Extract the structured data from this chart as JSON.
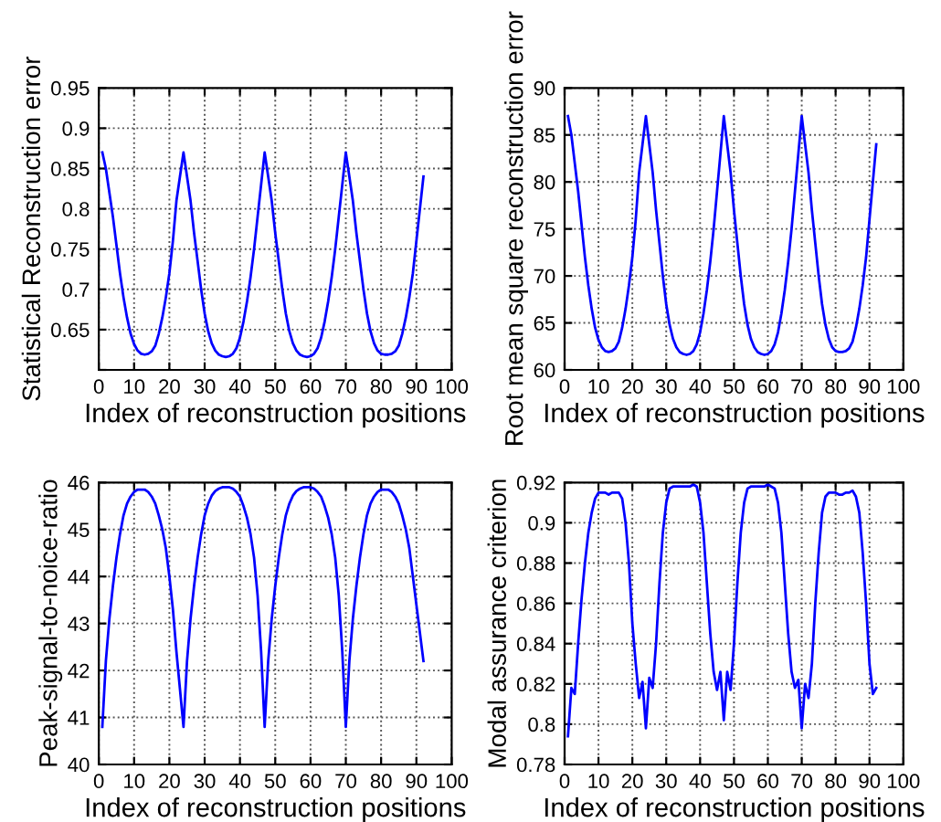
{
  "chart_data": [
    {
      "type": "line",
      "xlabel": "Index of reconstruction positions",
      "ylabel": "Statistical Reconstruction error",
      "xlim": [
        0,
        100
      ],
      "xticks": [
        0,
        10,
        20,
        30,
        40,
        50,
        60,
        70,
        80,
        90,
        100
      ],
      "ylim": [
        0.6,
        0.95
      ],
      "yticks": [
        {
          "value": 0.6,
          "label": null
        },
        0.65,
        0.7,
        0.75,
        0.8,
        0.85,
        0.9,
        0.95
      ],
      "grid": true,
      "line_style": "solid",
      "x": [
        1,
        2,
        3,
        4,
        5,
        6,
        7,
        8,
        9,
        10,
        11,
        12,
        13,
        14,
        15,
        16,
        17,
        18,
        19,
        20,
        21,
        22,
        23,
        24,
        25,
        26,
        27,
        28,
        29,
        30,
        31,
        32,
        33,
        34,
        35,
        36,
        37,
        38,
        39,
        40,
        41,
        42,
        43,
        44,
        45,
        46,
        47,
        48,
        49,
        50,
        51,
        52,
        53,
        54,
        55,
        56,
        57,
        58,
        59,
        60,
        61,
        62,
        63,
        64,
        65,
        66,
        67,
        68,
        69,
        70,
        71,
        72,
        73,
        74,
        75,
        76,
        77,
        78,
        79,
        80,
        81,
        82,
        83,
        84,
        85,
        86,
        87,
        88,
        89,
        90,
        91,
        92
      ],
      "series": [
        {
          "color": "#0000ff",
          "values": [
            0.87,
            0.85,
            0.82,
            0.79,
            0.755,
            0.72,
            0.69,
            0.665,
            0.645,
            0.632,
            0.624,
            0.62,
            0.619,
            0.62,
            0.623,
            0.63,
            0.645,
            0.665,
            0.69,
            0.72,
            0.76,
            0.81,
            0.84,
            0.87,
            0.84,
            0.81,
            0.77,
            0.735,
            0.7,
            0.67,
            0.648,
            0.633,
            0.624,
            0.619,
            0.617,
            0.616,
            0.617,
            0.62,
            0.627,
            0.64,
            0.66,
            0.685,
            0.715,
            0.75,
            0.79,
            0.83,
            0.87,
            0.84,
            0.81,
            0.77,
            0.735,
            0.7,
            0.67,
            0.648,
            0.633,
            0.624,
            0.619,
            0.617,
            0.616,
            0.617,
            0.62,
            0.627,
            0.64,
            0.66,
            0.685,
            0.715,
            0.75,
            0.79,
            0.83,
            0.87,
            0.84,
            0.81,
            0.77,
            0.735,
            0.7,
            0.67,
            0.648,
            0.633,
            0.624,
            0.62,
            0.619,
            0.619,
            0.62,
            0.623,
            0.63,
            0.645,
            0.665,
            0.69,
            0.72,
            0.76,
            0.8,
            0.84
          ]
        }
      ]
    },
    {
      "type": "line",
      "xlabel": "Index of reconstruction positions",
      "ylabel": "Root mean square reconstruction error",
      "xlim": [
        0,
        100
      ],
      "xticks": [
        0,
        10,
        20,
        30,
        40,
        50,
        60,
        70,
        80,
        90,
        100
      ],
      "ylim": [
        60,
        90
      ],
      "yticks": [
        60,
        65,
        70,
        75,
        80,
        85,
        90
      ],
      "grid": true,
      "line_style": "solid",
      "x": [
        1,
        2,
        3,
        4,
        5,
        6,
        7,
        8,
        9,
        10,
        11,
        12,
        13,
        14,
        15,
        16,
        17,
        18,
        19,
        20,
        21,
        22,
        23,
        24,
        25,
        26,
        27,
        28,
        29,
        30,
        31,
        32,
        33,
        34,
        35,
        36,
        37,
        38,
        39,
        40,
        41,
        42,
        43,
        44,
        45,
        46,
        47,
        48,
        49,
        50,
        51,
        52,
        53,
        54,
        55,
        56,
        57,
        58,
        59,
        60,
        61,
        62,
        63,
        64,
        65,
        66,
        67,
        68,
        69,
        70,
        71,
        72,
        73,
        74,
        75,
        76,
        77,
        78,
        79,
        80,
        81,
        82,
        83,
        84,
        85,
        86,
        87,
        88,
        89,
        90,
        91,
        92
      ],
      "series": [
        {
          "color": "#0000ff",
          "values": [
            87,
            85,
            82,
            79,
            75.5,
            72,
            69,
            66.5,
            64.5,
            63.2,
            62.4,
            62,
            61.9,
            62,
            62.3,
            63,
            64.5,
            66.5,
            69,
            72,
            76,
            81,
            84,
            87,
            84,
            81,
            77,
            73.5,
            70,
            67,
            64.8,
            63.3,
            62.4,
            61.9,
            61.7,
            61.6,
            61.7,
            62,
            62.7,
            64,
            66,
            68.5,
            71.5,
            75,
            79,
            83,
            87,
            84,
            81,
            77,
            73.5,
            70,
            67,
            64.8,
            63.3,
            62.4,
            61.9,
            61.7,
            61.6,
            61.7,
            62,
            62.7,
            64,
            66,
            68.5,
            71.5,
            75,
            79,
            83,
            87,
            84,
            81,
            77,
            73.5,
            70,
            67,
            64.8,
            63.3,
            62.4,
            62,
            61.9,
            61.9,
            62,
            62.3,
            63,
            64.5,
            66.5,
            69,
            72,
            76,
            80,
            84
          ]
        }
      ]
    },
    {
      "type": "line",
      "xlabel": "Index of reconstruction positions",
      "ylabel": "Peak-signal-to-noice-ratio",
      "xlim": [
        0,
        100
      ],
      "xticks": [
        0,
        10,
        20,
        30,
        40,
        50,
        60,
        70,
        80,
        90,
        100
      ],
      "ylim": [
        40,
        46
      ],
      "yticks": [
        40,
        41,
        42,
        43,
        44,
        45,
        46
      ],
      "grid": true,
      "line_style": "solid",
      "x": [
        1,
        2,
        3,
        4,
        5,
        6,
        7,
        8,
        9,
        10,
        11,
        12,
        13,
        14,
        15,
        16,
        17,
        18,
        19,
        20,
        21,
        22,
        23,
        24,
        25,
        26,
        27,
        28,
        29,
        30,
        31,
        32,
        33,
        34,
        35,
        36,
        37,
        38,
        39,
        40,
        41,
        42,
        43,
        44,
        45,
        46,
        47,
        48,
        49,
        50,
        51,
        52,
        53,
        54,
        55,
        56,
        57,
        58,
        59,
        60,
        61,
        62,
        63,
        64,
        65,
        66,
        67,
        68,
        69,
        70,
        71,
        72,
        73,
        74,
        75,
        76,
        77,
        78,
        79,
        80,
        81,
        82,
        83,
        84,
        85,
        86,
        87,
        88,
        89,
        90,
        91,
        92
      ],
      "series": [
        {
          "color": "#0000ff",
          "values": [
            40.8,
            42.2,
            43.1,
            43.8,
            44.4,
            44.9,
            45.3,
            45.55,
            45.7,
            45.8,
            45.85,
            45.85,
            45.85,
            45.8,
            45.7,
            45.55,
            45.3,
            45.0,
            44.6,
            44.0,
            43.3,
            42.4,
            41.6,
            40.8,
            42.2,
            43.1,
            43.8,
            44.4,
            44.9,
            45.3,
            45.55,
            45.72,
            45.82,
            45.87,
            45.9,
            45.9,
            45.9,
            45.87,
            45.8,
            45.7,
            45.5,
            45.25,
            44.9,
            44.4,
            43.6,
            42.4,
            40.8,
            42.2,
            43.1,
            43.8,
            44.4,
            44.9,
            45.3,
            45.55,
            45.72,
            45.82,
            45.87,
            45.9,
            45.9,
            45.9,
            45.87,
            45.8,
            45.7,
            45.5,
            45.25,
            44.9,
            44.4,
            43.6,
            42.4,
            40.8,
            42.2,
            43.1,
            43.8,
            44.4,
            44.9,
            45.3,
            45.55,
            45.7,
            45.8,
            45.85,
            45.85,
            45.85,
            45.8,
            45.7,
            45.55,
            45.3,
            45.0,
            44.6,
            44.0,
            43.4,
            42.8,
            42.2
          ]
        }
      ]
    },
    {
      "type": "line",
      "xlabel": "Index of reconstruction positions",
      "ylabel": "Modal assurance criterion",
      "xlim": [
        0,
        100
      ],
      "xticks": [
        0,
        10,
        20,
        30,
        40,
        50,
        60,
        70,
        80,
        90,
        100
      ],
      "ylim": [
        0.78,
        0.92
      ],
      "yticks": [
        0.78,
        0.8,
        0.82,
        0.84,
        0.86,
        0.88,
        0.9,
        0.92
      ],
      "grid": true,
      "line_style": "solid",
      "x": [
        1,
        2,
        3,
        4,
        5,
        6,
        7,
        8,
        9,
        10,
        11,
        12,
        13,
        14,
        15,
        16,
        17,
        18,
        19,
        20,
        21,
        22,
        23,
        24,
        25,
        26,
        27,
        28,
        29,
        30,
        31,
        32,
        33,
        34,
        35,
        36,
        37,
        38,
        39,
        40,
        41,
        42,
        43,
        44,
        45,
        46,
        47,
        48,
        49,
        50,
        51,
        52,
        53,
        54,
        55,
        56,
        57,
        58,
        59,
        60,
        61,
        62,
        63,
        64,
        65,
        66,
        67,
        68,
        69,
        70,
        71,
        72,
        73,
        74,
        75,
        76,
        77,
        78,
        79,
        80,
        81,
        82,
        83,
        84,
        85,
        86,
        87,
        88,
        89,
        90,
        91,
        92
      ],
      "series": [
        {
          "color": "#0000ff",
          "values": [
            0.794,
            0.818,
            0.815,
            0.84,
            0.862,
            0.88,
            0.895,
            0.905,
            0.912,
            0.915,
            0.915,
            0.915,
            0.914,
            0.915,
            0.915,
            0.915,
            0.912,
            0.9,
            0.88,
            0.85,
            0.83,
            0.813,
            0.821,
            0.798,
            0.823,
            0.818,
            0.84,
            0.87,
            0.895,
            0.91,
            0.917,
            0.918,
            0.918,
            0.918,
            0.918,
            0.918,
            0.918,
            0.919,
            0.918,
            0.91,
            0.895,
            0.87,
            0.845,
            0.826,
            0.817,
            0.826,
            0.802,
            0.826,
            0.817,
            0.84,
            0.87,
            0.895,
            0.91,
            0.917,
            0.918,
            0.918,
            0.918,
            0.918,
            0.918,
            0.919,
            0.918,
            0.917,
            0.91,
            0.895,
            0.87,
            0.845,
            0.826,
            0.818,
            0.822,
            0.798,
            0.82,
            0.813,
            0.83,
            0.86,
            0.885,
            0.905,
            0.913,
            0.915,
            0.915,
            0.915,
            0.914,
            0.914,
            0.915,
            0.915,
            0.916,
            0.913,
            0.905,
            0.885,
            0.86,
            0.83,
            0.815,
            0.818
          ]
        }
      ]
    }
  ]
}
